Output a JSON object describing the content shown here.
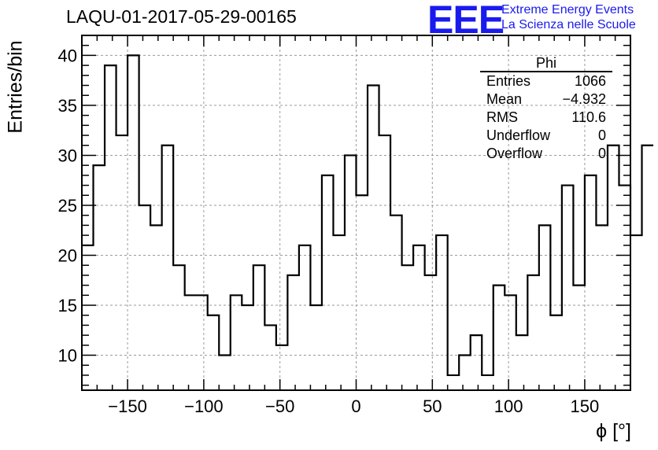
{
  "title": "LAQU-01-2017-05-29-00165",
  "logo": {
    "mark": "EEE",
    "line1": "Extreme Energy Events",
    "line2": "La Scienza nelle Scuole",
    "color": "#1a1aee"
  },
  "stats": {
    "name": "Phi",
    "rows": [
      {
        "label": "Entries",
        "value": "1066"
      },
      {
        "label": "Mean",
        "value": "−4.932"
      },
      {
        "label": "RMS",
        "value": "110.6"
      },
      {
        "label": "Underflow",
        "value": "0"
      },
      {
        "label": "Overflow",
        "value": "0"
      }
    ]
  },
  "chart_data": {
    "type": "bar",
    "style": "step-histogram",
    "title": "LAQU-01-2017-05-29-00165",
    "xlabel": "ϕ [°]",
    "ylabel": "Entries/bin",
    "xlim": [
      -180,
      180
    ],
    "ylim": [
      6.5,
      42
    ],
    "grid": true,
    "x_ticks": [
      -150,
      -100,
      -50,
      0,
      50,
      100,
      150
    ],
    "x_tick_labels": [
      "−150",
      "−100",
      "−50",
      "0",
      "50",
      "100",
      "150"
    ],
    "y_ticks": [
      10,
      15,
      20,
      25,
      30,
      35,
      40
    ],
    "bin_edges_start": -180,
    "bin_width": 7.5,
    "values": [
      21,
      29,
      39,
      32,
      40,
      25,
      23,
      31,
      19,
      16,
      16,
      14,
      10,
      16,
      15,
      19,
      13,
      11,
      18,
      21,
      15,
      28,
      22,
      30,
      26,
      37,
      32,
      24,
      19,
      21,
      18,
      22,
      8,
      10,
      12,
      8,
      17,
      16,
      12,
      18,
      23,
      14,
      27,
      17,
      28,
      23,
      31,
      27,
      22,
      31
    ]
  }
}
